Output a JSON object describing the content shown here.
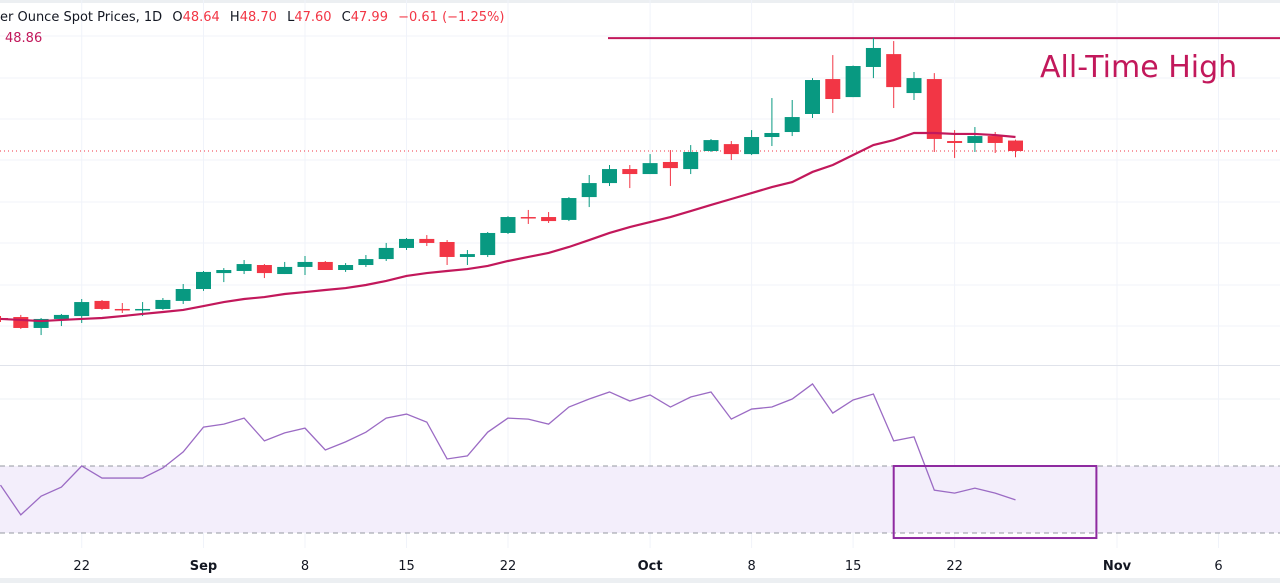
{
  "header": {
    "title": "er Ounce Spot Prices, 1D",
    "open_key": "O",
    "open": "48.64",
    "high_key": "H",
    "high": "48.70",
    "low_key": "L",
    "low": "47.60",
    "close_key": "C",
    "close": "47.99",
    "change": "−0.61 (−1.25%)",
    "ema_value": "48.86"
  },
  "annotation": {
    "ath_text": "All-Time High"
  },
  "colors": {
    "up": "#089981",
    "down": "#f23645",
    "ema": "#c2185b",
    "oscillator": "#9b6bc4",
    "band_fill": "#f3eefb",
    "highlight_box": "#8e2aa0",
    "ath_line": "#c2185b",
    "last_price_line": "#f23645"
  },
  "chart_data": [
    {
      "type": "candlestick",
      "interval": "1D",
      "ylim": [
        34.7,
        57.37
      ],
      "grid": true,
      "last_price": 47.99,
      "ath_level": 55.0,
      "dates": [
        "Aug 18",
        "Aug 19",
        "Aug 20",
        "Aug 21",
        "Aug 22",
        "Aug 25",
        "Aug 26",
        "Aug 27",
        "Aug 28",
        "Aug 29",
        "Sep 1",
        "Sep 2",
        "Sep 3",
        "Sep 4",
        "Sep 5",
        "Sep 8",
        "Sep 9",
        "Sep 10",
        "Sep 11",
        "Sep 12",
        "Sep 15",
        "Sep 16",
        "Sep 17",
        "Sep 18",
        "Sep 19",
        "Sep 22",
        "Sep 23",
        "Sep 24",
        "Sep 25",
        "Sep 26",
        "Sep 29",
        "Sep 30",
        "Oct 1",
        "Oct 2",
        "Oct 3",
        "Oct 6",
        "Oct 7",
        "Oct 8",
        "Oct 9",
        "Oct 10",
        "Oct 13",
        "Oct 14",
        "Oct 15",
        "Oct 16",
        "Oct 17",
        "Oct 20",
        "Oct 21",
        "Oct 22",
        "Oct 23",
        "Oct 24",
        "Oct 27"
      ],
      "ohlc": [
        [
          37.62,
          37.74,
          37.37,
          37.5
        ],
        [
          37.68,
          37.81,
          36.94,
          37.0
        ],
        [
          37.0,
          37.62,
          36.56,
          37.56
        ],
        [
          37.56,
          37.87,
          37.12,
          37.81
        ],
        [
          37.74,
          38.8,
          37.31,
          38.61
        ],
        [
          38.68,
          38.74,
          38.12,
          38.18
        ],
        [
          38.18,
          38.55,
          37.93,
          38.16
        ],
        [
          38.15,
          38.61,
          37.74,
          38.18
        ],
        [
          38.18,
          38.86,
          38.12,
          38.74
        ],
        [
          38.68,
          39.73,
          38.49,
          39.42
        ],
        [
          39.42,
          40.54,
          39.3,
          40.48
        ],
        [
          40.41,
          40.72,
          39.85,
          40.6
        ],
        [
          40.54,
          41.22,
          40.35,
          40.97
        ],
        [
          40.91,
          40.97,
          40.1,
          40.41
        ],
        [
          40.35,
          41.1,
          40.35,
          40.79
        ],
        [
          40.79,
          41.47,
          40.29,
          41.1
        ],
        [
          41.1,
          41.16,
          40.6,
          40.6
        ],
        [
          40.6,
          41.03,
          40.48,
          40.91
        ],
        [
          40.91,
          41.53,
          40.79,
          41.28
        ],
        [
          41.28,
          42.28,
          41.16,
          41.97
        ],
        [
          41.97,
          42.59,
          41.84,
          42.53
        ],
        [
          42.53,
          42.77,
          42.09,
          42.28
        ],
        [
          42.34,
          42.46,
          40.91,
          41.41
        ],
        [
          41.41,
          41.84,
          40.91,
          41.59
        ],
        [
          41.53,
          42.96,
          41.41,
          42.9
        ],
        [
          42.9,
          43.95,
          42.84,
          43.89
        ],
        [
          43.89,
          44.33,
          43.46,
          43.86
        ],
        [
          43.89,
          44.2,
          43.52,
          43.64
        ],
        [
          43.71,
          45.13,
          43.64,
          45.07
        ],
        [
          45.13,
          46.5,
          44.51,
          46.0
        ],
        [
          46.0,
          47.12,
          45.82,
          46.87
        ],
        [
          46.87,
          47.12,
          45.69,
          46.56
        ],
        [
          46.56,
          47.8,
          46.56,
          47.24
        ],
        [
          47.31,
          48.05,
          45.82,
          46.93
        ],
        [
          46.87,
          48.36,
          46.56,
          47.93
        ],
        [
          47.99,
          48.74,
          47.93,
          48.67
        ],
        [
          48.42,
          48.61,
          47.43,
          47.8
        ],
        [
          47.8,
          49.29,
          47.74,
          48.86
        ],
        [
          48.86,
          51.28,
          48.3,
          49.11
        ],
        [
          49.17,
          51.16,
          48.92,
          50.1
        ],
        [
          50.29,
          52.52,
          50.04,
          52.4
        ],
        [
          52.46,
          53.95,
          50.35,
          51.22
        ],
        [
          51.34,
          53.3,
          51.34,
          53.27
        ],
        [
          53.21,
          55.01,
          52.52,
          54.39
        ],
        [
          54.01,
          54.82,
          50.66,
          51.96
        ],
        [
          51.59,
          52.9,
          51.16,
          52.52
        ],
        [
          52.46,
          52.83,
          47.93,
          48.74
        ],
        [
          48.61,
          49.29,
          47.56,
          48.49
        ],
        [
          48.49,
          49.48,
          47.93,
          48.92
        ],
        [
          48.92,
          49.17,
          47.87,
          48.49
        ],
        [
          48.64,
          48.7,
          47.6,
          47.99
        ]
      ],
      "ema": [
        37.56,
        37.5,
        37.43,
        37.5,
        37.56,
        37.62,
        37.74,
        37.87,
        37.99,
        38.12,
        38.36,
        38.61,
        38.8,
        38.92,
        39.11,
        39.23,
        39.36,
        39.48,
        39.67,
        39.92,
        40.23,
        40.41,
        40.54,
        40.66,
        40.85,
        41.16,
        41.41,
        41.66,
        42.03,
        42.46,
        42.9,
        43.27,
        43.58,
        43.89,
        44.26,
        44.64,
        45.01,
        45.38,
        45.75,
        46.06,
        46.69,
        47.12,
        47.74,
        48.36,
        48.67,
        49.11,
        49.11,
        49.05,
        49.05,
        48.98,
        48.86
      ],
      "x_ticks": [
        {
          "label": "22",
          "date": "Aug 22"
        },
        {
          "label": "Sep",
          "date": "Sep 1"
        },
        {
          "label": "8",
          "date": "Sep 8"
        },
        {
          "label": "15",
          "date": "Sep 15"
        },
        {
          "label": "22",
          "date": "Sep 22"
        },
        {
          "label": "Oct",
          "date": "Oct 1"
        },
        {
          "label": "8",
          "date": "Oct 8"
        },
        {
          "label": "15",
          "date": "Oct 15"
        },
        {
          "label": "22",
          "date": "Oct 22"
        },
        {
          "label": "Nov",
          "date": "Nov 3"
        },
        {
          "label": "6",
          "date": "Nov 6"
        }
      ]
    },
    {
      "type": "line",
      "ylim": [
        29,
        80
      ],
      "grid_levels": [
        70,
        80
      ],
      "band": [
        30,
        50
      ],
      "values": [
        44.3,
        35.4,
        41.0,
        43.7,
        50.0,
        46.4,
        46.4,
        46.4,
        49.4,
        54.2,
        61.6,
        62.5,
        64.3,
        57.5,
        59.9,
        61.3,
        54.8,
        57.2,
        60.1,
        64.3,
        65.5,
        63.1,
        52.1,
        53.0,
        60.1,
        64.3,
        64.0,
        62.5,
        67.6,
        70.0,
        72.1,
        69.4,
        71.2,
        67.6,
        70.6,
        72.1,
        64.0,
        67.0,
        67.6,
        70.0,
        74.5,
        65.8,
        69.7,
        71.5,
        57.5,
        58.7,
        42.8,
        41.9,
        43.4,
        41.9,
        39.9
      ],
      "highlight": {
        "from": "Oct 17",
        "to": "Oct 30",
        "range": [
          28.5,
          50
        ]
      }
    }
  ]
}
